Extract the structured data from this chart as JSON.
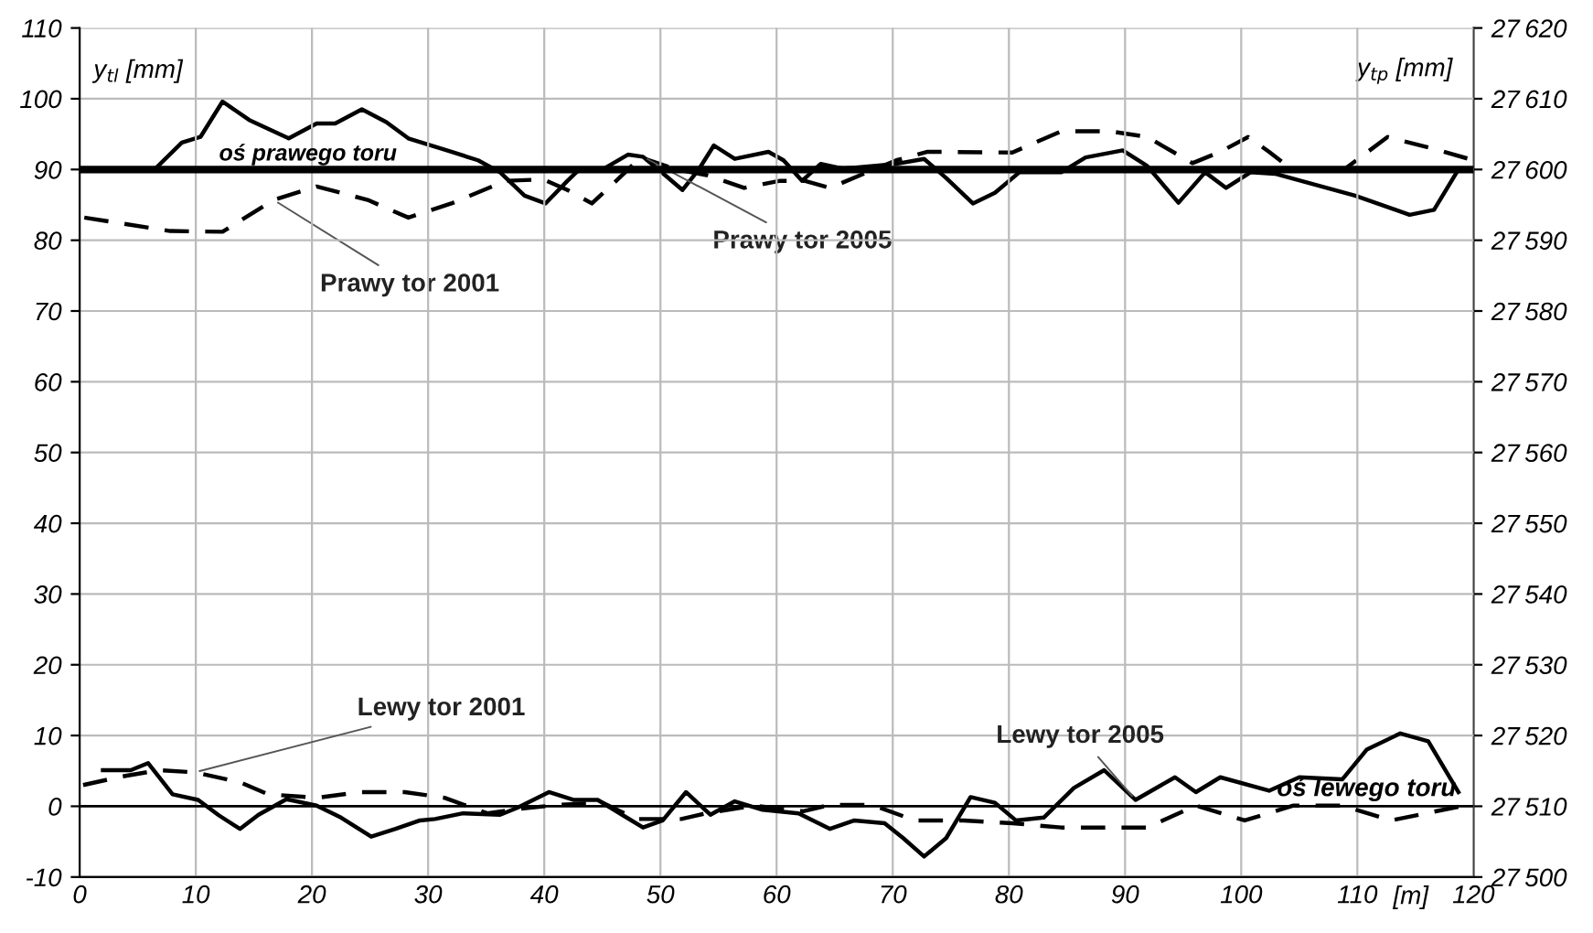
{
  "chart_data": {
    "type": "line",
    "xlabel": "[m]",
    "ylabel": "y$_{tl}$ [mm]",
    "y2label": "y$_{tp}$ [mm]",
    "xlim": [
      0,
      120
    ],
    "xticks": [
      0,
      10,
      20,
      30,
      40,
      50,
      60,
      70,
      80,
      90,
      100,
      110,
      120
    ],
    "ylim": [
      -10,
      110
    ],
    "yticks": [
      -10,
      0,
      10,
      20,
      30,
      40,
      50,
      60,
      70,
      80,
      90,
      100,
      110
    ],
    "y2lim": [
      27500,
      27620
    ],
    "y2ticks": [
      27500,
      27510,
      27520,
      27530,
      27540,
      27550,
      27560,
      27570,
      27580,
      27590,
      27600,
      27610,
      27620
    ],
    "grid": true,
    "legend": false,
    "marker": "none",
    "ref_lines": [
      {
        "axis": "y",
        "value": 90,
        "label": "oś prawego toru",
        "color": "#000000"
      },
      {
        "axis": "y",
        "value": 0,
        "label": "oś lewego toru",
        "color": "#000000"
      }
    ],
    "series": [
      {
        "name": "Prawy tor 2005",
        "color": "#000000",
        "line_style": "solid",
        "axis": "y2",
        "x": [
          6.5,
          8.8,
          10.4,
          12.3,
          14.6,
          18,
          20.4,
          22,
          24.3,
          26.4,
          28.3,
          32,
          34.3,
          36.2,
          38.3,
          40.1,
          42,
          43,
          45,
          47.2,
          48.5,
          50.4,
          51.9,
          53.3,
          54.6,
          56.4,
          59.3,
          60.6,
          62.2,
          63.8,
          65.7,
          70.3,
          72.7,
          74.6,
          76.9,
          78.8,
          80.9,
          84.5,
          86.6,
          89.8,
          91.9,
          94.6,
          96.9,
          98.7,
          100.8,
          102.9,
          109.8,
          114.5,
          116.6,
          118.7
        ],
        "values": [
          27600.1,
          27603.8,
          27604.6,
          27609.6,
          27607,
          27604.4,
          27606.5,
          27606.5,
          27608.5,
          27606.7,
          27604.4,
          27602.5,
          27601.3,
          27599.6,
          27596.3,
          27595.2,
          27598.4,
          27600,
          27600,
          27602.1,
          27601.8,
          27599.2,
          27597.1,
          27600,
          27603.4,
          27601.5,
          27602.5,
          27601.3,
          27598.4,
          27600.8,
          27600.1,
          27600.8,
          27601.5,
          27598.8,
          27595.2,
          27596.7,
          27599.6,
          27599.6,
          27601.7,
          27602.7,
          27600.5,
          27595.3,
          27599.6,
          27597.4,
          27599.6,
          27599.4,
          27596.3,
          27593.6,
          27594.3,
          27600
        ]
      },
      {
        "name": "Prawy tor 2001",
        "color": "#000000",
        "line_style": "dashed",
        "axis": "y2",
        "x": [
          0.4,
          7.8,
          12.3,
          16.7,
          20.4,
          24.8,
          28.3,
          32,
          36.7,
          39.9,
          42,
          44.1,
          46.2,
          48.3,
          51.4,
          54,
          57.2,
          60.3,
          62.4,
          64.6,
          67.8,
          70.3,
          73,
          80.3,
          84.5,
          88.7,
          91.9,
          95.8,
          98.2,
          100.6,
          102.4,
          104.5,
          108.7,
          112.6,
          116.6,
          119.8
        ],
        "values": [
          27593.2,
          27591.3,
          27591.2,
          27595.7,
          27597.6,
          27595.7,
          27593.2,
          27595.2,
          27598.4,
          27598.6,
          27597.1,
          27595.2,
          27598.4,
          27601.7,
          27600,
          27599.2,
          27597.4,
          27598.4,
          27598.4,
          27597.4,
          27599.6,
          27601.3,
          27602.5,
          27602.4,
          27605.4,
          27605.4,
          27604.6,
          27600.9,
          27602.5,
          27604.6,
          27602.5,
          27599.8,
          27599.8,
          27604.6,
          27602.9,
          27601.4
        ]
      },
      {
        "name": "Lewy tor 2001",
        "color": "#000000",
        "line_style": "dashed",
        "x": [
          0.3,
          3.6,
          6.8,
          9.9,
          13.8,
          16.2,
          20.4,
          24.1,
          28,
          31.4,
          35.1,
          38.2,
          41.3,
          45,
          47.9,
          51.8,
          53.9,
          58.1,
          62.3,
          64.6,
          68.2,
          71.9,
          76.1,
          80.3,
          84.5,
          91.9,
          96.1,
          100.3,
          104.5,
          108.7,
          112.9,
          119.2
        ],
        "values": [
          3.0,
          4.2,
          5.1,
          4.8,
          3.4,
          1.7,
          1.2,
          2.0,
          2.0,
          1.2,
          -1.0,
          -0.3,
          0.2,
          0.5,
          -1.8,
          -1.8,
          -1.0,
          0.1,
          -0.7,
          0.2,
          0.2,
          -2.0,
          -2.0,
          -2.4,
          -3.0,
          -3.0,
          0.1,
          -2.0,
          0.1,
          0.1,
          -2.0,
          0.1
        ]
      },
      {
        "name": "Lewy tor 2005",
        "color": "#000000",
        "line_style": "solid",
        "x": [
          2.0,
          4.4,
          5.9,
          8.0,
          10.2,
          12,
          13.8,
          15.4,
          17.8,
          20.4,
          22.5,
          25.1,
          27.2,
          29.3,
          30.6,
          33,
          36.2,
          37.7,
          40.4,
          42.5,
          44.6,
          46.7,
          48.5,
          50.2,
          52.2,
          54.3,
          56.4,
          58.8,
          61.9,
          64.6,
          66.7,
          69.3,
          70.9,
          72.7,
          74.6,
          76.7,
          78.8,
          80.6,
          83,
          85.6,
          88.2,
          90.9,
          94.3,
          96.1,
          98.2,
          102.4,
          105,
          108.7,
          110.8,
          113.7,
          116.1,
          118.7
        ],
        "values": [
          5.1,
          5.1,
          6.1,
          1.7,
          0.9,
          -1.3,
          -3.2,
          -1.2,
          1.0,
          0.1,
          -1.6,
          -4.3,
          -3.2,
          -2.0,
          -1.8,
          -1.0,
          -1.2,
          -0.2,
          2.0,
          0.9,
          0.9,
          -1.2,
          -3.0,
          -2.0,
          2.0,
          -1.2,
          0.7,
          -0.5,
          -1.0,
          -3.2,
          -2.0,
          -2.4,
          -4.5,
          -7.1,
          -4.5,
          1.3,
          0.5,
          -2.0,
          -1.6,
          2.6,
          5.1,
          0.9,
          4.1,
          2.0,
          4.1,
          2.2,
          4.1,
          3.8,
          8.0,
          10.3,
          9.2,
          2.0
        ]
      }
    ]
  }
}
